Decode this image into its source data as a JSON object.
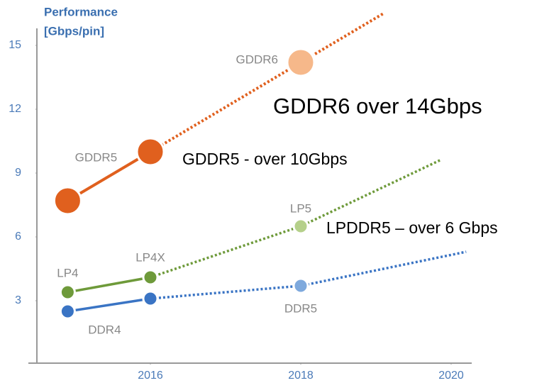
{
  "chart_data": {
    "type": "line",
    "y_title": [
      "Performance",
      "[Gbps/pin]"
    ],
    "xlim": [
      2014.45,
      2020.3
    ],
    "ylim": [
      0,
      16.5
    ],
    "xticks": [
      2016,
      2018,
      2020
    ],
    "yticks": [
      3,
      6,
      9,
      12,
      15
    ],
    "series": [
      {
        "color": "#e0601e",
        "marker_colors": [
          "#e0601e",
          "#e0601e",
          "#f6b88a",
          null
        ],
        "x": [
          2014.9,
          2016,
          2018,
          2019.1
        ],
        "values": [
          7.7,
          10,
          14.2,
          16.5
        ],
        "labels": [
          "GDDR5",
          null,
          "GDDR6",
          null
        ],
        "solid_until": 1
      },
      {
        "color": "#6e9a3a",
        "marker_colors": [
          "#6e9a3a",
          "#6e9a3a",
          "#b5d08a",
          null
        ],
        "x": [
          2014.9,
          2016,
          2018,
          2019.85
        ],
        "values": [
          3.4,
          4.1,
          6.5,
          9.6
        ],
        "labels": [
          "LP4",
          "LP4X",
          "LP5",
          null
        ],
        "solid_until": 1
      },
      {
        "color": "#3a74c4",
        "marker_colors": [
          "#3a74c4",
          "#3a74c4",
          "#7ea9dd",
          null
        ],
        "x": [
          2014.9,
          2016,
          2018,
          2020.2
        ],
        "values": [
          2.5,
          3.1,
          3.7,
          5.3
        ],
        "labels": [
          "DDR4",
          null,
          "DDR5",
          null
        ],
        "solid_until": 1
      }
    ],
    "annotations": [
      "GDDR6 over 14Gbps",
      "GDDR5 -  over 10Gbps",
      "LPDDR5 – over 6 Gbps"
    ]
  }
}
